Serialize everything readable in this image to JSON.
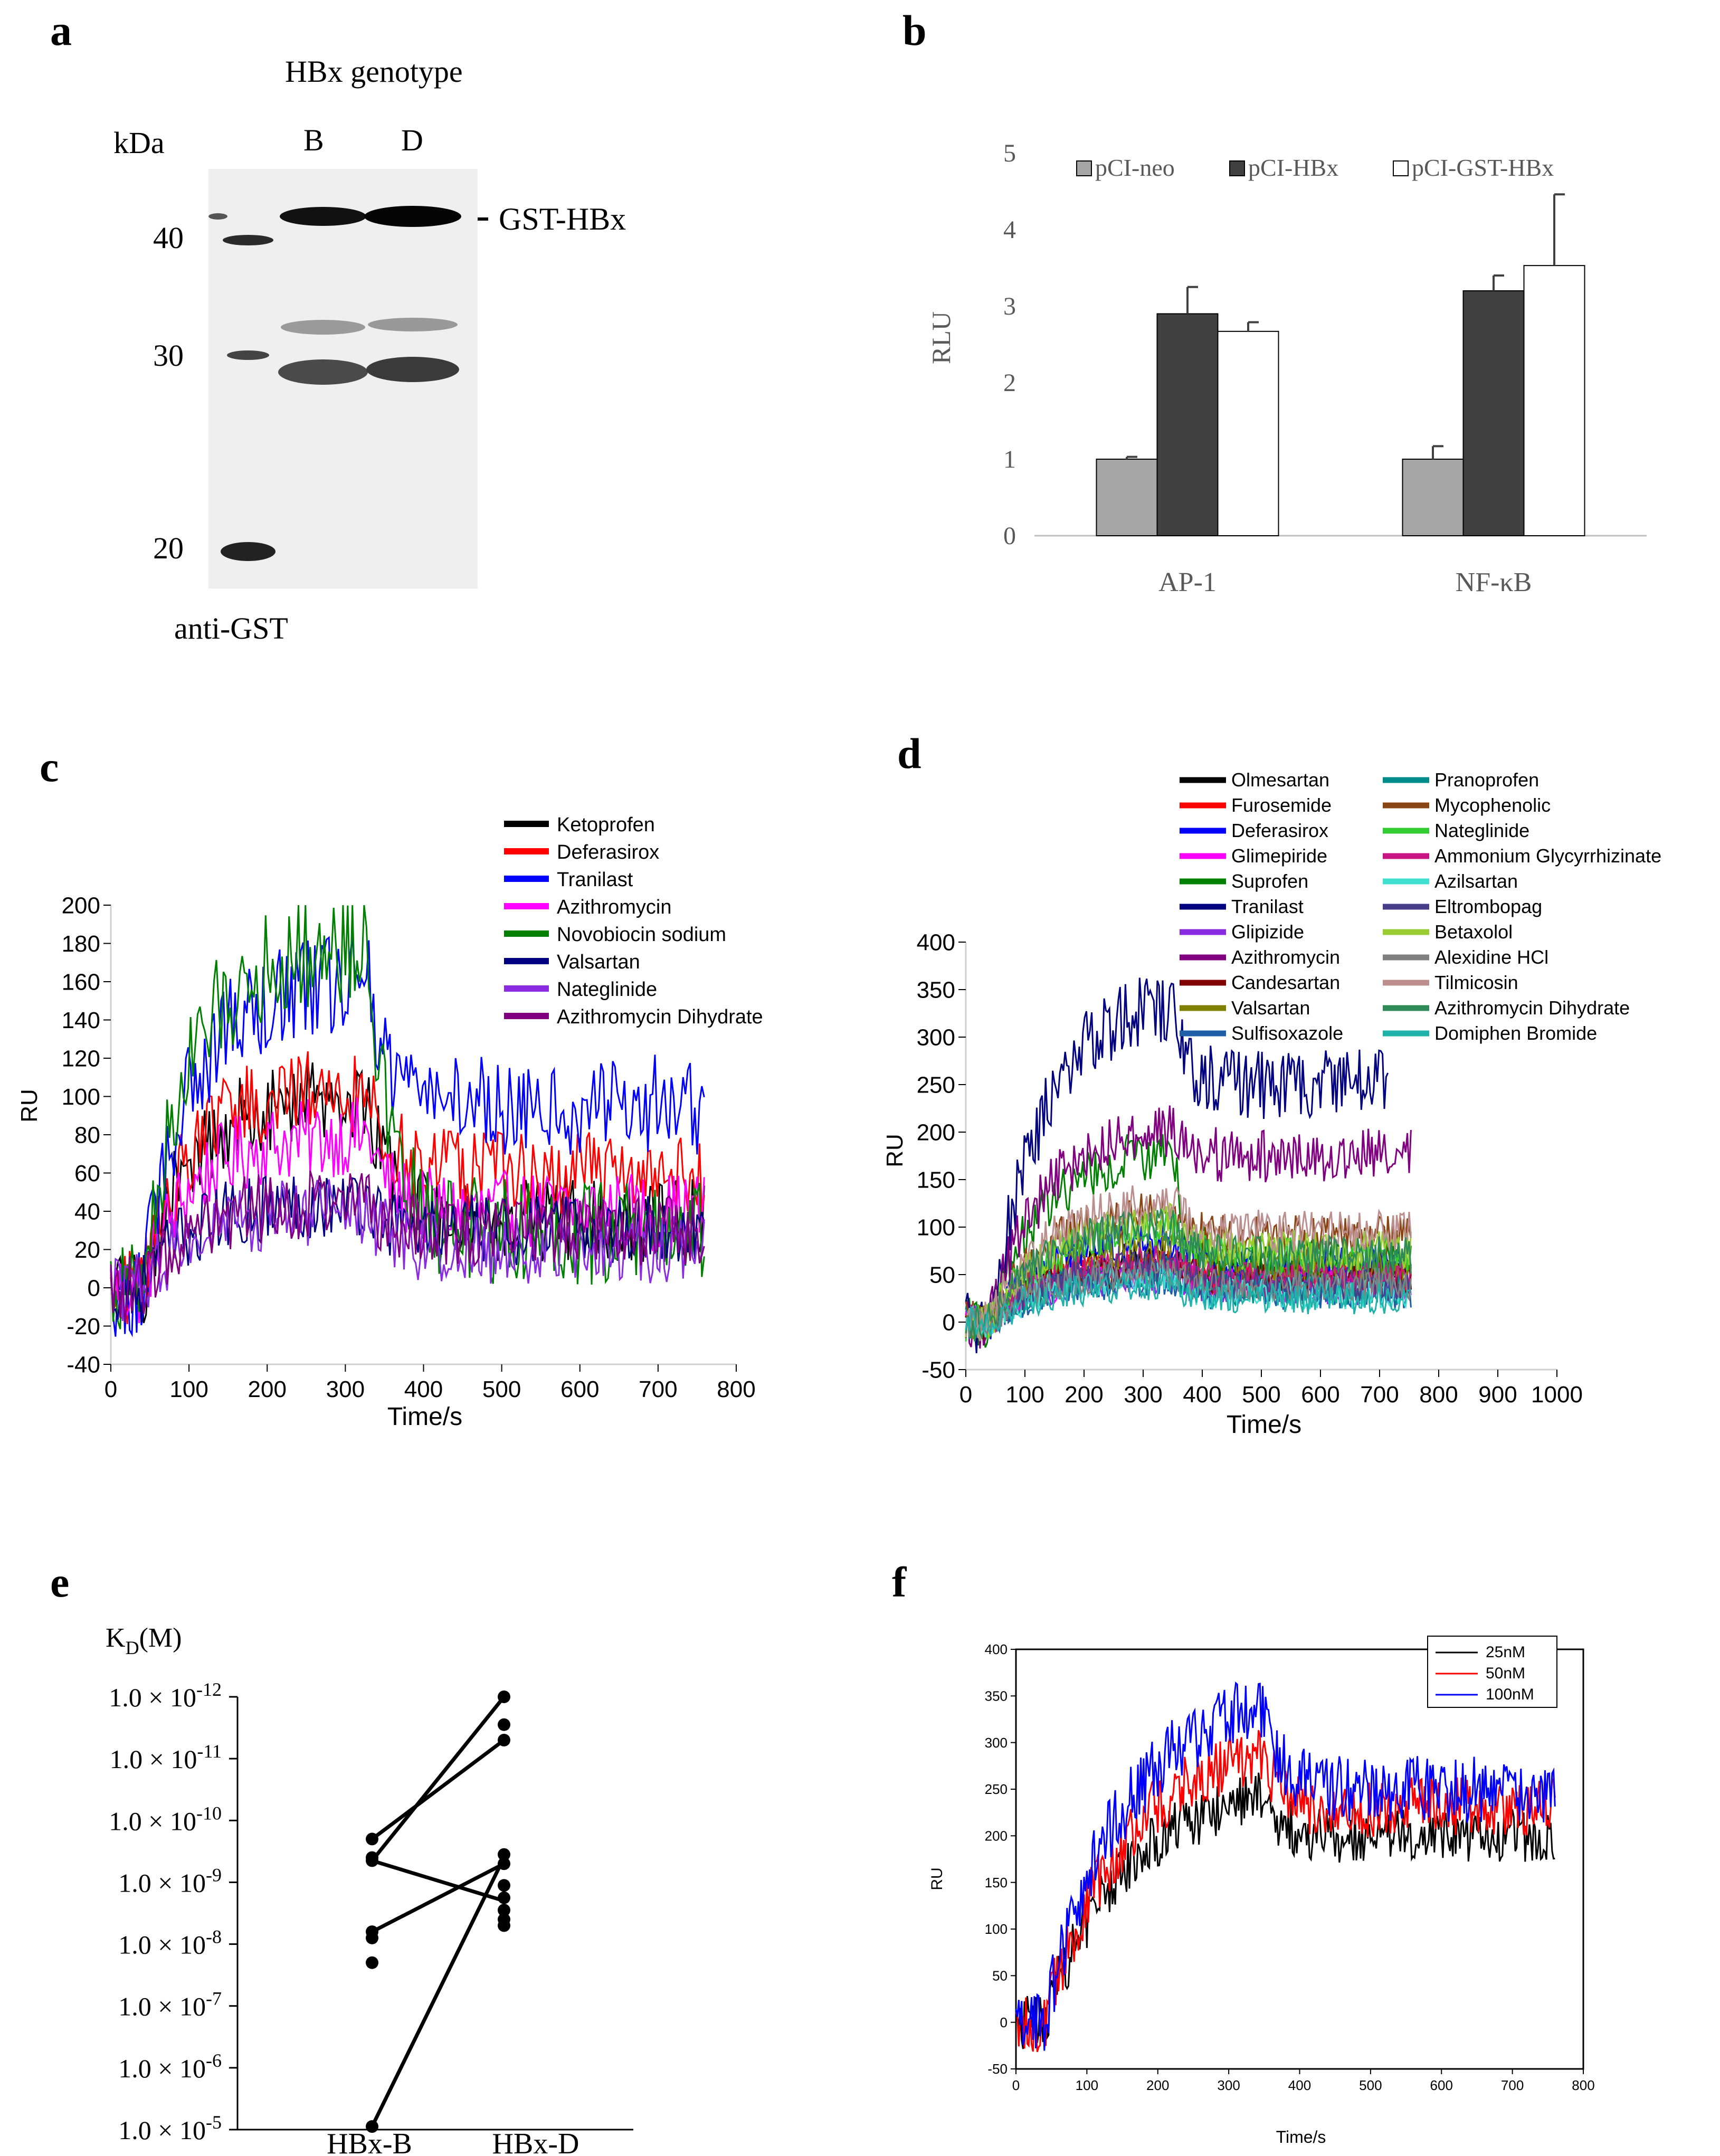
{
  "panels": {
    "a": {
      "letter": "a",
      "title": "HBx genotype",
      "kda_label": "kDa",
      "lane_labels": [
        "B",
        "D"
      ],
      "markers": [
        "40",
        "30",
        "20"
      ],
      "band_label": "GST-HBx",
      "antibody": "anti-GST"
    },
    "b": {
      "letter": "b"
    },
    "c": {
      "letter": "c"
    },
    "d": {
      "letter": "d"
    },
    "e": {
      "letter": "e"
    },
    "f": {
      "letter": "f"
    }
  },
  "chart_data": [
    {
      "id": "b",
      "type": "bar",
      "ylabel": "RLU",
      "xlabel": "",
      "ylim": [
        0,
        5
      ],
      "yticks": [
        "0",
        "1",
        "2",
        "3",
        "4",
        "5"
      ],
      "categories": [
        "AP-1",
        "NF-κB"
      ],
      "legend_position": "top",
      "series": [
        {
          "name": "pCI-neo",
          "color": "#a6a6a6",
          "values": [
            1.0,
            1.0
          ],
          "errors": [
            0.03,
            0.17
          ]
        },
        {
          "name": "pCI-HBx",
          "color": "#404040",
          "values": [
            2.9,
            3.2
          ],
          "errors": [
            0.35,
            0.2
          ]
        },
        {
          "name": "pCI-GST-HBx",
          "color": "#ffffff",
          "values": [
            2.67,
            3.53
          ],
          "errors": [
            0.12,
            0.93
          ]
        }
      ]
    },
    {
      "id": "c",
      "type": "line",
      "xlabel": "Time/s",
      "ylabel": "RU",
      "xlim": [
        0,
        800
      ],
      "ylim": [
        -40,
        200
      ],
      "xticks": [
        "0",
        "100",
        "200",
        "300",
        "400",
        "500",
        "600",
        "700",
        "800"
      ],
      "yticks": [
        "-40",
        "-20",
        "0",
        "20",
        "40",
        "60",
        "80",
        "100",
        "120",
        "140",
        "160",
        "180",
        "200"
      ],
      "injection_end_s": 330,
      "series": [
        {
          "name": "Ketoprofen",
          "color": "#000000",
          "plateau": 100,
          "final": 35
        },
        {
          "name": "Deferasirox",
          "color": "#ff0000",
          "plateau": 105,
          "final": 60
        },
        {
          "name": "Tranilast",
          "color": "#0000ff",
          "plateau": 160,
          "final": 95
        },
        {
          "name": "Azithromycin",
          "color": "#ff00ff",
          "plateau": 80,
          "final": 40
        },
        {
          "name": "Novobiocin sodium",
          "color": "#008000",
          "plateau": 180,
          "final": 30
        },
        {
          "name": "Valsartan",
          "color": "#000080",
          "plateau": 45,
          "final": 30
        },
        {
          "name": "Nateglinide",
          "color": "#8a2be2",
          "plateau": 40,
          "final": 20
        },
        {
          "name": "Azithromycin Dihydrate",
          "color": "#800080",
          "plateau": 45,
          "final": 30
        }
      ]
    },
    {
      "id": "d",
      "type": "line",
      "xlabel": "Time/s",
      "ylabel": "RU",
      "xlim": [
        0,
        1000
      ],
      "ylim": [
        -50,
        400
      ],
      "xticks": [
        "0",
        "100",
        "200",
        "300",
        "400",
        "500",
        "600",
        "700",
        "800",
        "900",
        "1000"
      ],
      "yticks": [
        "-50",
        "0",
        "50",
        "100",
        "150",
        "200",
        "250",
        "300",
        "350",
        "400"
      ],
      "injection_end_s": 350,
      "series": [
        {
          "name": "Olmesartan",
          "color": "#000000",
          "plateau": 70,
          "final": 50
        },
        {
          "name": "Furosemide",
          "color": "#ff0000",
          "plateau": 60,
          "final": 45
        },
        {
          "name": "Deferasirox",
          "color": "#0000ff",
          "plateau": 90,
          "final": 60
        },
        {
          "name": "Glimepiride",
          "color": "#ff00ff",
          "plateau": 55,
          "final": 40
        },
        {
          "name": "Suprofen",
          "color": "#008000",
          "plateau": 185,
          "final": 60
        },
        {
          "name": "Tranilast",
          "color": "#000080",
          "plateau": 345,
          "final": 250
        },
        {
          "name": "Glipizide",
          "color": "#8a2be2",
          "plateau": 50,
          "final": 35
        },
        {
          "name": "Azithromycin",
          "color": "#800080",
          "plateau": 210,
          "final": 175
        },
        {
          "name": "Candesartan",
          "color": "#800000",
          "plateau": 60,
          "final": 45
        },
        {
          "name": "Valsartan",
          "color": "#808000",
          "plateau": 80,
          "final": 55
        },
        {
          "name": "Sulfisoxazole",
          "color": "#1f5fa8",
          "plateau": 45,
          "final": 30
        },
        {
          "name": "Pranoprofen",
          "color": "#008b8b",
          "plateau": 55,
          "final": 35
        },
        {
          "name": "Mycophenolic",
          "color": "#8b4513",
          "plateau": 120,
          "final": 90
        },
        {
          "name": "Nateglinide",
          "color": "#32cd32",
          "plateau": 100,
          "final": 70
        },
        {
          "name": "Ammonium Glycyrrhizinate",
          "color": "#c71585",
          "plateau": 65,
          "final": 45
        },
        {
          "name": "Azilsartan",
          "color": "#40e0d0",
          "plateau": 50,
          "final": 30
        },
        {
          "name": "Eltrombopag",
          "color": "#483d8b",
          "plateau": 60,
          "final": 40
        },
        {
          "name": "Betaxolol",
          "color": "#9acd32",
          "plateau": 110,
          "final": 75
        },
        {
          "name": "Alexidine HCl",
          "color": "#808080",
          "plateau": 55,
          "final": 40
        },
        {
          "name": "Tilmicosin",
          "color": "#bc8f8f",
          "plateau": 130,
          "final": 95
        },
        {
          "name": "Azithromycin Dihydrate",
          "color": "#2e8b57",
          "plateau": 105,
          "final": 70
        },
        {
          "name": "Domiphen Bromide",
          "color": "#20b2aa",
          "plateau": 40,
          "final": 25
        }
      ]
    },
    {
      "id": "e",
      "type": "scatter",
      "ylabel": "K",
      "ylabel_sub": "D",
      "ylabel_unit": "(M)",
      "yscale": "log",
      "ylim_exponent": [
        -12,
        -5
      ],
      "ytick_base": "1.0 × 10",
      "ytick_exponents": [
        "-12",
        "-11",
        "-10",
        "-9",
        "-8",
        "-7",
        "-6",
        "-5"
      ],
      "categories": [
        "HBx-B",
        "HBx-D"
      ],
      "points_B_log10": [
        -9.7,
        -9.4,
        -9.35,
        -8.2,
        -8.1,
        -7.7,
        -5.05
      ],
      "points_D_log10": [
        -12.0,
        -11.55,
        -11.3,
        -9.45,
        -9.3,
        -8.95,
        -8.75,
        -8.55,
        -8.4,
        -8.3
      ],
      "pairs_log10": [
        [
          -9.7,
          -11.3
        ],
        [
          -9.35,
          -12.0
        ],
        [
          -9.35,
          -8.7
        ],
        [
          -8.2,
          -9.3
        ],
        [
          -5.05,
          -9.4
        ]
      ]
    },
    {
      "id": "f",
      "type": "line",
      "xlabel": "Time/s",
      "ylabel": "RU",
      "xlim": [
        0,
        800
      ],
      "ylim": [
        -50,
        400
      ],
      "xticks": [
        "0",
        "100",
        "200",
        "300",
        "400",
        "500",
        "600",
        "700",
        "800"
      ],
      "yticks": [
        "-50",
        "0",
        "50",
        "100",
        "150",
        "200",
        "250",
        "300",
        "350",
        "400"
      ],
      "injection_end_s": 350,
      "series": [
        {
          "name": "25nM",
          "color": "#000000",
          "plateau": 255,
          "final": 200
        },
        {
          "name": "50nM",
          "color": "#ff0000",
          "plateau": 305,
          "final": 230
        },
        {
          "name": "100nM",
          "color": "#0000ff",
          "plateau": 360,
          "final": 250
        }
      ]
    }
  ]
}
